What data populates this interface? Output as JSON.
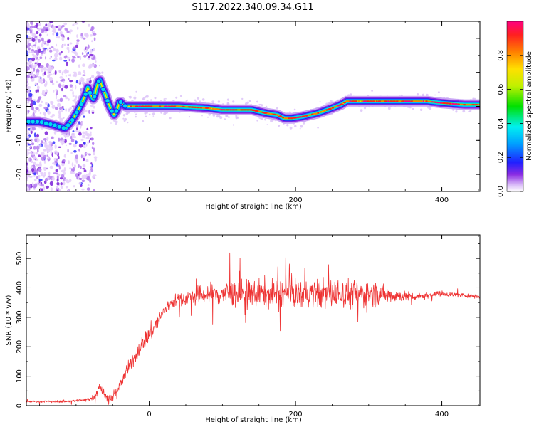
{
  "title": "S117.2022.340.09.34.G11",
  "chart_data": [
    {
      "type": "heatmap",
      "xlabel": "Height of straight line (km)",
      "ylabel": "Frequency (Hz)",
      "xlim": [
        -168,
        452
      ],
      "ylim": [
        -25,
        25
      ],
      "x_ticks": [
        0,
        200,
        400
      ],
      "y_ticks": [
        -20,
        -10,
        0,
        10,
        20
      ],
      "ridge": {
        "x": [
          -168,
          -150,
          -130,
          -115,
          -105,
          -97,
          -92,
          -88,
          -84,
          -80,
          -76,
          -72,
          -68,
          -64,
          -60,
          -56,
          -52,
          -48,
          -44,
          -40,
          -36,
          -32,
          -28,
          -20,
          0,
          40,
          80,
          100,
          120,
          140,
          160,
          175,
          185,
          195,
          210,
          230,
          250,
          262,
          270,
          300,
          350,
          380,
          400,
          430,
          452
        ],
        "y": [
          -4.5,
          -4.5,
          -5.5,
          -6.5,
          -4,
          -1,
          1,
          3,
          5.5,
          3.5,
          2,
          5.5,
          8,
          5.5,
          3.5,
          1,
          -1,
          -2.5,
          -1,
          1.5,
          0.5,
          0,
          0,
          0,
          0,
          0,
          -0.5,
          -1,
          -1,
          -1,
          -2,
          -2.5,
          -3.5,
          -3.5,
          -3,
          -2,
          -0.5,
          0.5,
          1.5,
          1.5,
          1.5,
          1.5,
          1,
          0.5,
          0.5
        ]
      },
      "colorbar": {
        "label": "Normalized spectral amplitude",
        "range": [
          0,
          1
        ],
        "ticks": [
          "0.0",
          "0.2",
          "0.4",
          "0.6",
          "0.8"
        ]
      }
    },
    {
      "type": "line",
      "xlabel": "Height of straight line (km)",
      "ylabel": "SNR (10 * v/v)",
      "xlim": [
        -168,
        452
      ],
      "ylim": [
        0,
        580
      ],
      "x_ticks": [
        0,
        200,
        400
      ],
      "y_ticks": [
        0,
        100,
        200,
        300,
        400,
        500
      ],
      "series": [
        {
          "color": "#ee3333",
          "envelope_x": [
            -168,
            -120,
            -90,
            -75,
            -68,
            -60,
            -50,
            -40,
            -30,
            -20,
            -10,
            0,
            10,
            20,
            30,
            50,
            70,
            100,
            150,
            200,
            250,
            300,
            330,
            360,
            400,
            430,
            452
          ],
          "envelope_mean": [
            14,
            14,
            18,
            28,
            70,
            30,
            25,
            70,
            120,
            165,
            210,
            240,
            280,
            320,
            350,
            365,
            375,
            380,
            380,
            380,
            380,
            380,
            375,
            370,
            380,
            375,
            370
          ],
          "envelope_spread": [
            5,
            6,
            8,
            15,
            40,
            20,
            15,
            25,
            35,
            40,
            45,
            50,
            45,
            40,
            35,
            40,
            50,
            70,
            75,
            75,
            80,
            75,
            40,
            20,
            15,
            12,
            10
          ]
        }
      ]
    }
  ]
}
